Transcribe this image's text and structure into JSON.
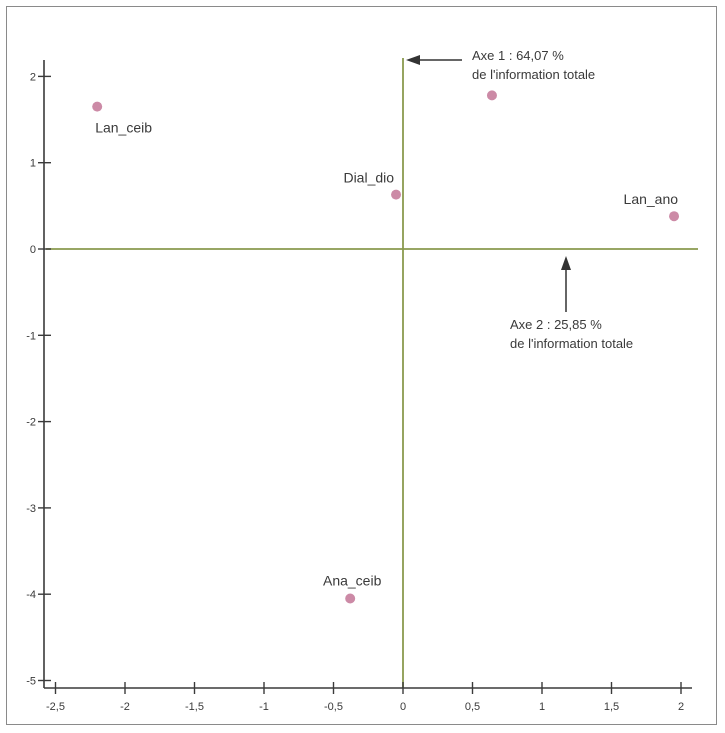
{
  "chart_data": {
    "type": "scatter",
    "title": "",
    "xlabel": "",
    "ylabel": "",
    "xlim": [
      -2.6,
      2.1
    ],
    "ylim": [
      -5.5,
      2.3
    ],
    "grid": false,
    "x_ticks": [
      {
        "value": -2.5,
        "label": "-2,5"
      },
      {
        "value": -2,
        "label": "-2"
      },
      {
        "value": -1.5,
        "label": "-1,5"
      },
      {
        "value": -1,
        "label": "-1"
      },
      {
        "value": -0.5,
        "label": "-0,5"
      },
      {
        "value": 0,
        "label": "0"
      },
      {
        "value": 0.5,
        "label": "0,5"
      },
      {
        "value": 1,
        "label": "1"
      },
      {
        "value": 1.5,
        "label": "1,5"
      },
      {
        "value": 2,
        "label": "2"
      }
    ],
    "y_ticks": [
      {
        "value": 2,
        "label": "2"
      },
      {
        "value": 1,
        "label": "1"
      },
      {
        "value": 0,
        "label": "0"
      },
      {
        "value": -1,
        "label": "-1"
      },
      {
        "value": -2,
        "label": "-2"
      },
      {
        "value": -3,
        "label": "-3"
      },
      {
        "value": -4,
        "label": "-4"
      },
      {
        "value": -5,
        "label": "-5"
      }
    ],
    "points": [
      {
        "label": "Lan_ceib",
        "x": -2.2,
        "y": 1.65
      },
      {
        "label": "",
        "x": 0.64,
        "y": 1.78
      },
      {
        "label": "Dial_dio",
        "x": -0.05,
        "y": 0.63
      },
      {
        "label": "Lan_ano",
        "x": 1.95,
        "y": 0.38
      },
      {
        "label": "Ana_ceib",
        "x": -0.38,
        "y": -4.05
      }
    ],
    "reference_lines": [
      {
        "orientation": "vertical",
        "value": 0
      },
      {
        "orientation": "horizontal",
        "value": 0
      }
    ],
    "annotations": [
      {
        "line1": "Axe 1 : 64,07 %",
        "line2": "de l'information totale"
      },
      {
        "line1": "Axe 2 : 25,85 %",
        "line2": "de l'information totale"
      }
    ],
    "colors": {
      "point": "#cc8aa6",
      "axis": "#3a3a3a",
      "reference": "#8a9a4e",
      "arrow": "#333333"
    }
  }
}
